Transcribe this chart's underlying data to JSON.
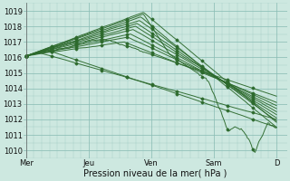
{
  "bg_color": "#cde8e0",
  "grid_color": "#8bbdb5",
  "line_color": "#2d6a2d",
  "marker_color": "#2d6a2d",
  "ylabel_ticks": [
    1010,
    1011,
    1012,
    1013,
    1014,
    1015,
    1016,
    1017,
    1018,
    1019
  ],
  "ylim": [
    1009.5,
    1019.5
  ],
  "xlabel": "Pression niveau de la mer( hPa )",
  "day_labels": [
    "Mer",
    "Jeu",
    "Ven",
    "Sam",
    "D"
  ],
  "day_positions": [
    0,
    48,
    96,
    144,
    192
  ],
  "xlim": [
    -2,
    200
  ],
  "title": "",
  "figsize": [
    3.2,
    2.0
  ],
  "dpi": 100
}
